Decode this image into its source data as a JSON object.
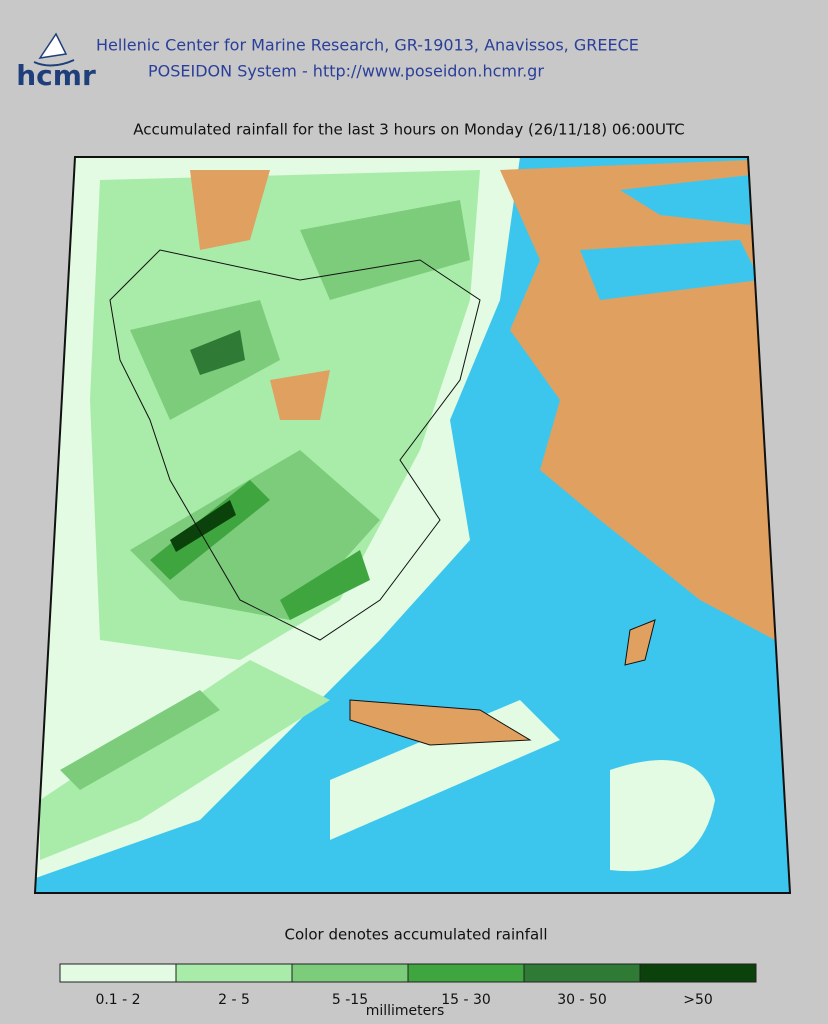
{
  "header": {
    "logo_text": "hcmr",
    "line1": "Hellenic Center for Marine Research, GR-19013, Anavissos, GREECE",
    "line2": "POSEIDON System - http://www.poseidon.hcmr.gr"
  },
  "map": {
    "title": "Accumulated rainfall for the last 3 hours on Monday (26/11/18) 06:00UTC"
  },
  "legend": {
    "caption": "Color denotes accumulated rainfall",
    "unit": "millimeters",
    "classes": [
      {
        "label": "0.1 - 2",
        "color": "#e2fbe2"
      },
      {
        "label": "2 - 5",
        "color": "#a9eca9"
      },
      {
        "label": "5 -15",
        "color": "#7ccc7c"
      },
      {
        "label": "15 - 30",
        "color": "#3fa63f"
      },
      {
        "label": "30 - 50",
        "color": "#2f7a35"
      },
      {
        "label": ">50",
        "color": "#0b420b"
      }
    ]
  }
}
